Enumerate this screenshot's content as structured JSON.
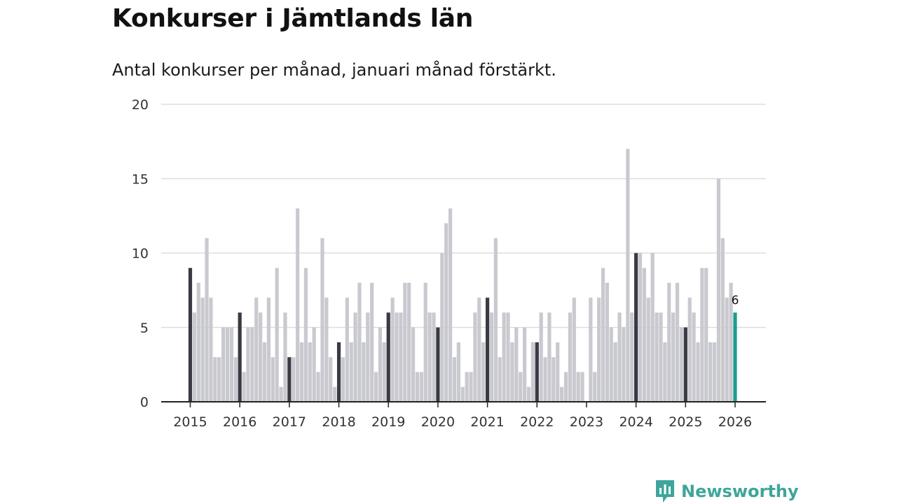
{
  "title": "Konkurser i Jämtlands län",
  "subtitle": "Antal konkurser per månad, januari månad förstärkt.",
  "brand": {
    "name": "Newsworthy",
    "icon": "newsworthy-logo-icon",
    "color": "#3fa59b"
  },
  "colors": {
    "regular": "#c9c9d0",
    "january": "#3a3a45",
    "latest": "#1a9e8f",
    "grid": "#dddddd",
    "axis": "#222222"
  },
  "chart_data": {
    "type": "bar",
    "title": "Konkurser i Jämtlands län",
    "subtitle": "Antal konkurser per månad, januari månad förstärkt.",
    "xlabel": "",
    "ylabel": "",
    "ylim": [
      0,
      20
    ],
    "yticks": [
      0,
      5,
      10,
      15,
      20
    ],
    "grid": true,
    "start": "2015-01",
    "xticks": [
      "2015",
      "2016",
      "2017",
      "2018",
      "2019",
      "2020",
      "2021",
      "2022",
      "2023",
      "2024",
      "2025",
      "2026"
    ],
    "highlight": "January bars darker; latest month highlighted",
    "latest_label": "6",
    "values": [
      9,
      6,
      8,
      7,
      11,
      7,
      3,
      3,
      5,
      5,
      5,
      3,
      6,
      2,
      5,
      5,
      7,
      6,
      4,
      7,
      3,
      9,
      1,
      6,
      3,
      3,
      13,
      4,
      9,
      4,
      5,
      2,
      11,
      7,
      3,
      1,
      4,
      3,
      7,
      4,
      6,
      8,
      4,
      6,
      8,
      2,
      5,
      4,
      6,
      7,
      6,
      6,
      8,
      8,
      5,
      2,
      2,
      8,
      6,
      6,
      5,
      10,
      12,
      13,
      3,
      4,
      1,
      2,
      2,
      6,
      7,
      4,
      7,
      6,
      11,
      3,
      6,
      6,
      4,
      5,
      2,
      5,
      1,
      4,
      4,
      6,
      3,
      6,
      3,
      4,
      1,
      2,
      6,
      7,
      2,
      2,
      0,
      7,
      2,
      7,
      9,
      8,
      5,
      4,
      6,
      5,
      17,
      6,
      10,
      10,
      9,
      7,
      10,
      6,
      6,
      4,
      8,
      6,
      8,
      5,
      5,
      7,
      6,
      4,
      9,
      9,
      4,
      4,
      15,
      11,
      7,
      8,
      6
    ]
  }
}
